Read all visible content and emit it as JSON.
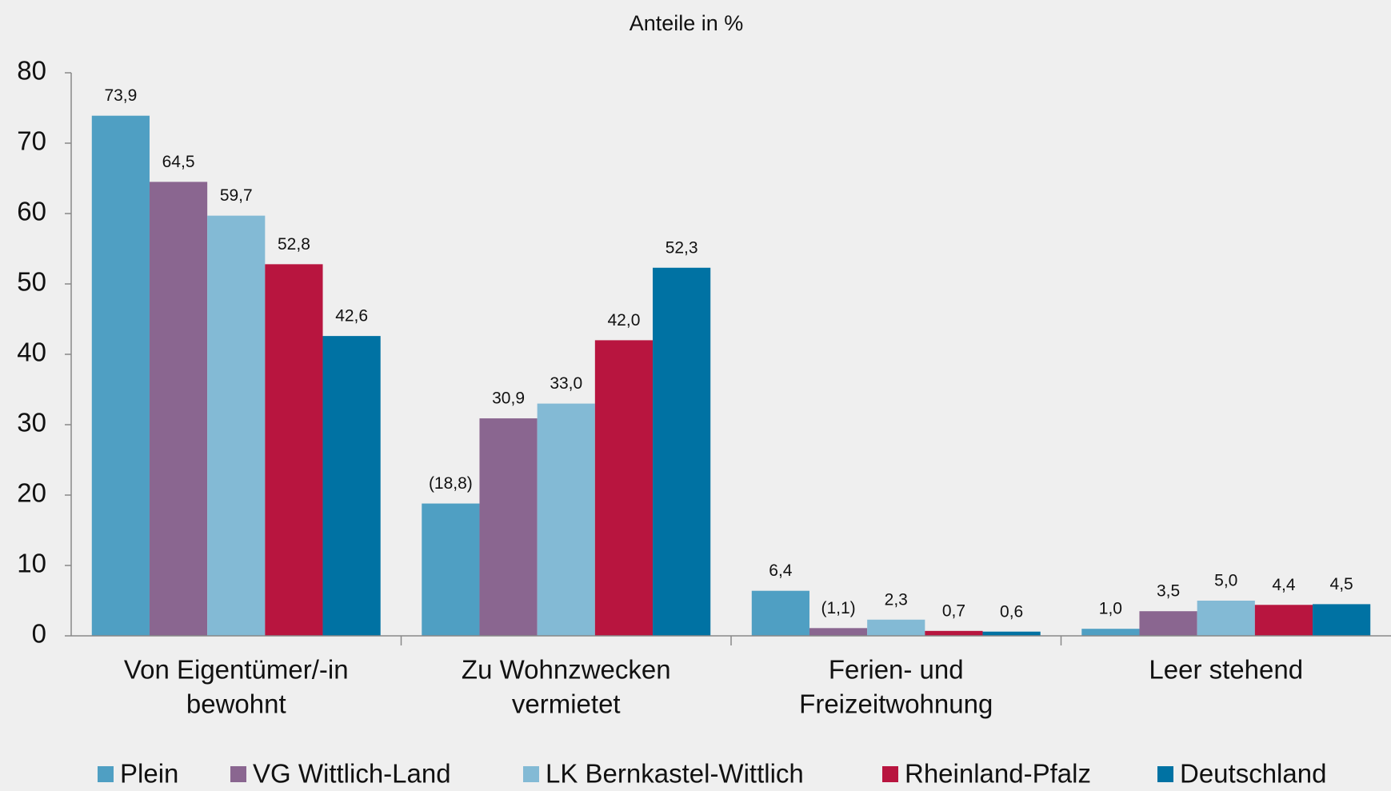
{
  "chart_data": {
    "type": "bar",
    "title": "Anteile in %",
    "categories": [
      [
        "Von Eigentümer/-in",
        "bewohnt"
      ],
      [
        "Zu Wohnzwecken",
        "vermietet"
      ],
      [
        "Ferien- und",
        "Freizeitwohnung"
      ],
      [
        "Leer stehend"
      ]
    ],
    "series": [
      {
        "name": "Plein",
        "color": "#4f9fc3",
        "values": [
          73.9,
          18.8,
          6.4,
          1.0
        ],
        "value_labels": [
          "73,9",
          "(18,8)",
          "6,4",
          "1,0"
        ]
      },
      {
        "name": "VG Wittlich-Land",
        "color": "#8a6690",
        "values": [
          64.5,
          30.9,
          1.1,
          3.5
        ],
        "value_labels": [
          "64,5",
          "30,9",
          "(1,1)",
          "3,5"
        ]
      },
      {
        "name": "LK Bernkastel-Wittlich",
        "color": "#83bad5",
        "values": [
          59.7,
          33.0,
          2.3,
          5.0
        ],
        "value_labels": [
          "59,7",
          "33,0",
          "2,3",
          "5,0"
        ]
      },
      {
        "name": "Rheinland-Pfalz",
        "color": "#b8153f",
        "values": [
          52.8,
          42.0,
          0.7,
          4.4
        ],
        "value_labels": [
          "52,8",
          "42,0",
          "0,7",
          "4,4"
        ]
      },
      {
        "name": "Deutschland",
        "color": "#0072a3",
        "values": [
          42.6,
          52.3,
          0.6,
          4.5
        ],
        "value_labels": [
          "42,6",
          "52,3",
          "0,6",
          "4,5"
        ]
      }
    ],
    "ylim": [
      0,
      80
    ],
    "yticks": [
      0,
      10,
      20,
      30,
      40,
      50,
      60,
      70,
      80
    ],
    "grid": false,
    "legend": "bottom"
  }
}
